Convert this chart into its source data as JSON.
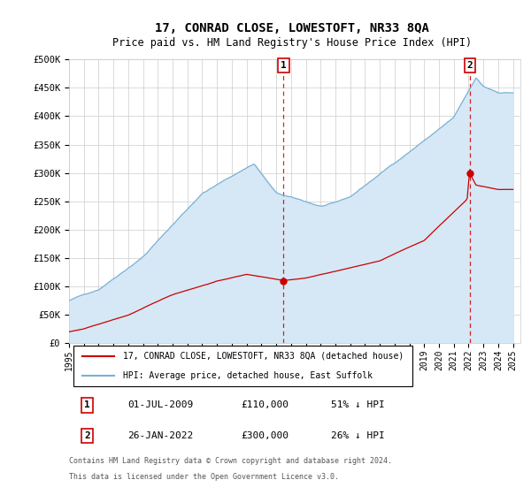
{
  "title": "17, CONRAD CLOSE, LOWESTOFT, NR33 8QA",
  "subtitle": "Price paid vs. HM Land Registry's House Price Index (HPI)",
  "ylabel_ticks": [
    "£0",
    "£50K",
    "£100K",
    "£150K",
    "£200K",
    "£250K",
    "£300K",
    "£350K",
    "£400K",
    "£450K",
    "£500K"
  ],
  "ytick_values": [
    0,
    50000,
    100000,
    150000,
    200000,
    250000,
    300000,
    350000,
    400000,
    450000,
    500000
  ],
  "ylim": [
    0,
    500000
  ],
  "xlim_start": 1995.0,
  "xlim_end": 2025.5,
  "hpi_color": "#7ab0d4",
  "hpi_fill_color": "#d6e8f5",
  "price_color": "#cc0000",
  "marker_color": "#cc0000",
  "vline_color": "#cc0000",
  "bg_color": "#ffffff",
  "grid_color": "#cccccc",
  "transaction1": {
    "date_num": 2009.5,
    "price": 110000,
    "label": "1",
    "text": "01-JUL-2009",
    "amount": "£110,000",
    "pct": "51% ↓ HPI"
  },
  "transaction2": {
    "date_num": 2022.08,
    "price": 300000,
    "label": "2",
    "text": "26-JAN-2022",
    "amount": "£300,000",
    "pct": "26% ↓ HPI"
  },
  "legend_line1": "17, CONRAD CLOSE, LOWESTOFT, NR33 8QA (detached house)",
  "legend_line2": "HPI: Average price, detached house, East Suffolk",
  "footer1": "Contains HM Land Registry data © Crown copyright and database right 2024.",
  "footer2": "This data is licensed under the Open Government Licence v3.0.",
  "xtick_years": [
    1995,
    1996,
    1997,
    1998,
    1999,
    2000,
    2001,
    2002,
    2003,
    2004,
    2005,
    2006,
    2007,
    2008,
    2009,
    2010,
    2011,
    2012,
    2013,
    2014,
    2015,
    2016,
    2017,
    2018,
    2019,
    2020,
    2021,
    2022,
    2023,
    2024,
    2025
  ]
}
